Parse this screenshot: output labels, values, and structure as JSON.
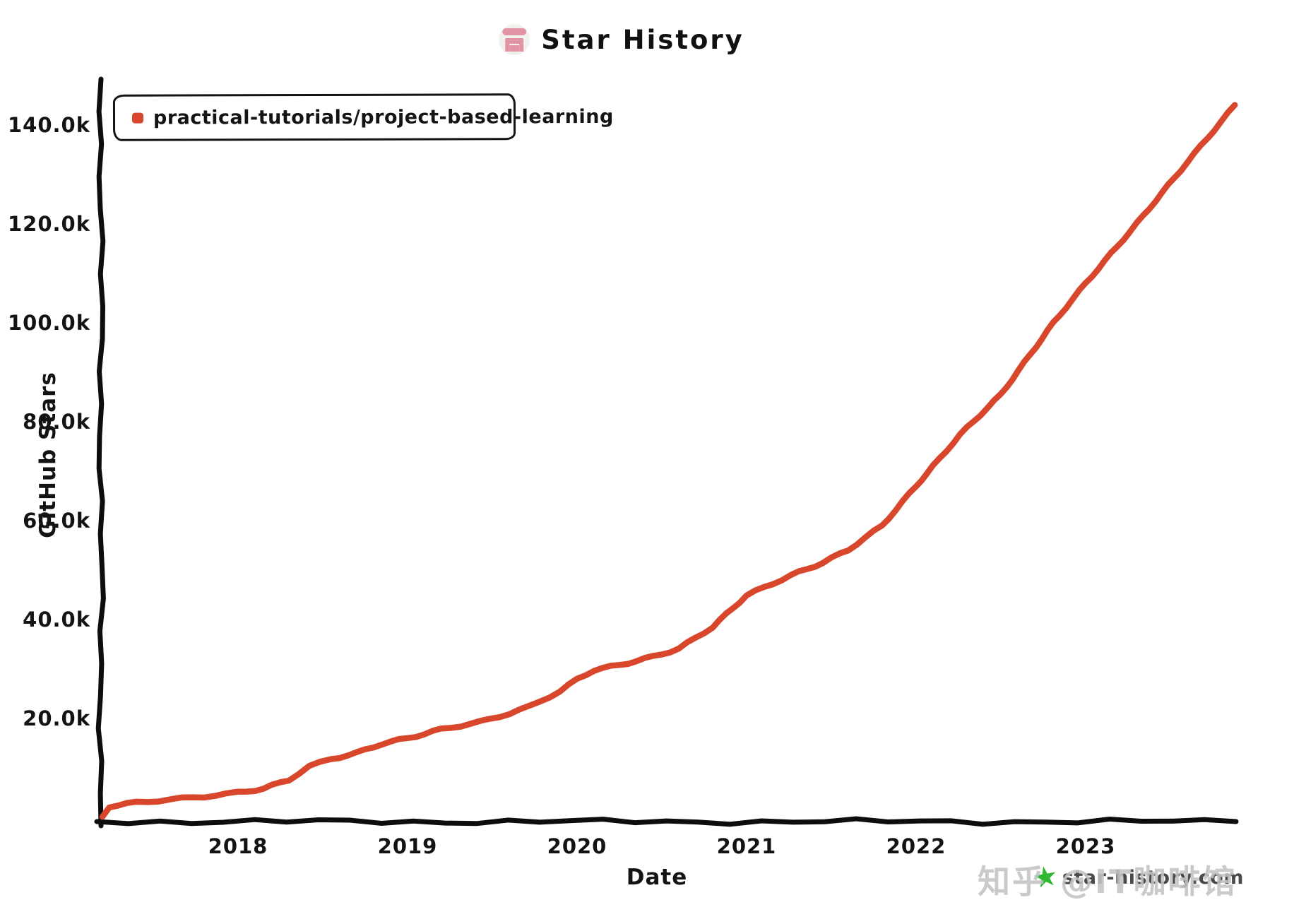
{
  "header": {
    "title": "Star History",
    "logo_icon": "star-history-logo"
  },
  "legend": {
    "series_label": "practical-tutorials/project-based-learning"
  },
  "axes": {
    "x_label": "Date",
    "y_label": "GitHub Stars"
  },
  "watermark": {
    "zhihu_text": "知乎 @IT咖啡馆",
    "attribution_text": "star-history.com",
    "star_icon": "green-star-icon",
    "star_glyph": "★"
  },
  "colors": {
    "line": "#d8472c",
    "axis": "#0d0d0d",
    "background": "#ffffff",
    "logo_pink": "#e294a4",
    "watermark_gray": "#c3c3c3",
    "watermark_green": "#2eb82e"
  },
  "chart_data": {
    "type": "line",
    "title": "Star History",
    "xlabel": "Date",
    "ylabel": "GitHub Stars",
    "grid": false,
    "legend_position": "top-left",
    "xlim_years": [
      2017.2,
      2023.95
    ],
    "ylim": [
      0,
      146000
    ],
    "x_ticks": [
      {
        "label": "2018",
        "year": 2018
      },
      {
        "label": "2019",
        "year": 2019
      },
      {
        "label": "2020",
        "year": 2020
      },
      {
        "label": "2021",
        "year": 2021
      },
      {
        "label": "2022",
        "year": 2022
      },
      {
        "label": "2023",
        "year": 2023
      }
    ],
    "y_ticks": [
      {
        "label": "20.0k",
        "value": 20000
      },
      {
        "label": "40.0k",
        "value": 40000
      },
      {
        "label": "60.0k",
        "value": 60000
      },
      {
        "label": "80.0k",
        "value": 80000
      },
      {
        "label": "100.0k",
        "value": 100000
      },
      {
        "label": "120.0k",
        "value": 120000
      },
      {
        "label": "140.0k",
        "value": 140000
      }
    ],
    "series": [
      {
        "name": "practical-tutorials/project-based-learning",
        "color": "#d8472c",
        "points": [
          {
            "year": 2017.2,
            "stars": 100
          },
          {
            "year": 2017.24,
            "stars": 2200
          },
          {
            "year": 2017.4,
            "stars": 3000
          },
          {
            "year": 2017.6,
            "stars": 3600
          },
          {
            "year": 2017.8,
            "stars": 4200
          },
          {
            "year": 2018.0,
            "stars": 5000
          },
          {
            "year": 2018.15,
            "stars": 5800
          },
          {
            "year": 2018.3,
            "stars": 7600
          },
          {
            "year": 2018.42,
            "stars": 10300
          },
          {
            "year": 2018.55,
            "stars": 11800
          },
          {
            "year": 2018.7,
            "stars": 13000
          },
          {
            "year": 2018.85,
            "stars": 14900
          },
          {
            "year": 2019.0,
            "stars": 16000
          },
          {
            "year": 2019.2,
            "stars": 17800
          },
          {
            "year": 2019.43,
            "stars": 19300
          },
          {
            "year": 2019.6,
            "stars": 21000
          },
          {
            "year": 2019.72,
            "stars": 22400
          },
          {
            "year": 2019.9,
            "stars": 25500
          },
          {
            "year": 2020.0,
            "stars": 27900
          },
          {
            "year": 2020.1,
            "stars": 29800
          },
          {
            "year": 2020.25,
            "stars": 30800
          },
          {
            "year": 2020.45,
            "stars": 32500
          },
          {
            "year": 2020.6,
            "stars": 34100
          },
          {
            "year": 2020.8,
            "stars": 38500
          },
          {
            "year": 2021.0,
            "stars": 44900
          },
          {
            "year": 2021.26,
            "stars": 48900
          },
          {
            "year": 2021.45,
            "stars": 51500
          },
          {
            "year": 2021.6,
            "stars": 54100
          },
          {
            "year": 2021.8,
            "stars": 59000
          },
          {
            "year": 2022.0,
            "stars": 67000
          },
          {
            "year": 2022.1,
            "stars": 71000
          },
          {
            "year": 2022.26,
            "stars": 77400
          },
          {
            "year": 2022.5,
            "stars": 85500
          },
          {
            "year": 2022.81,
            "stars": 100000
          },
          {
            "year": 2023.0,
            "stars": 108000
          },
          {
            "year": 2023.3,
            "stars": 120000
          },
          {
            "year": 2023.6,
            "stars": 132500
          },
          {
            "year": 2023.88,
            "stars": 144000
          }
        ]
      }
    ]
  }
}
